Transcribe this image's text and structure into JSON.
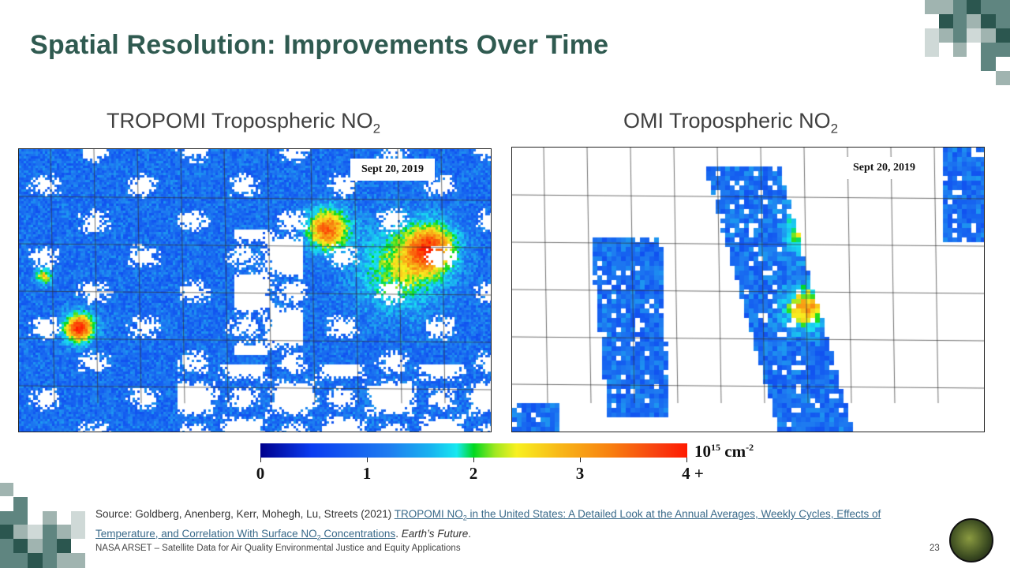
{
  "slide": {
    "title": "Spatial Resolution: Improvements Over Time",
    "page_number": "23",
    "footer": "NASA ARSET – Satellite Data for Air Quality Environmental Justice and Equity Applications"
  },
  "maps": [
    {
      "title": "TROPOMI Tropospheric NO",
      "title_sub": "2",
      "date": "Sept 20, 2019"
    },
    {
      "title": "OMI Tropospheric NO",
      "title_sub": "2",
      "date": "Sept 20, 2019"
    }
  ],
  "colorbar": {
    "ticks": [
      "0",
      "1",
      "2",
      "3",
      "4 +"
    ],
    "range": [
      0,
      4
    ],
    "units_base": "10",
    "units_exp": "15",
    "units_text": " cm",
    "units_exp2": "-2",
    "colors": [
      "#00008c",
      "#1e7cf0",
      "#18e8f0",
      "#00d820",
      "#f8f020",
      "#f88010",
      "#ff1a00"
    ]
  },
  "source": {
    "prefix": "Source: Goldberg, Anenberg, Kerr, Mohegh, Lu, Streets (2021) ",
    "link_part1": "TROPOMI NO",
    "link_sub1": "2",
    "link_part2": " in the United States: A Detailed Look at the Annual Averages, Weekly Cycles, Effects of Temperature, and Correlation With Surface NO",
    "link_sub2": "2",
    "link_part3": " Concentrations",
    "separator": ". ",
    "journal": "Earth’s Future",
    "suffix": "."
  },
  "theme": {
    "accent": "#2f5a50"
  }
}
